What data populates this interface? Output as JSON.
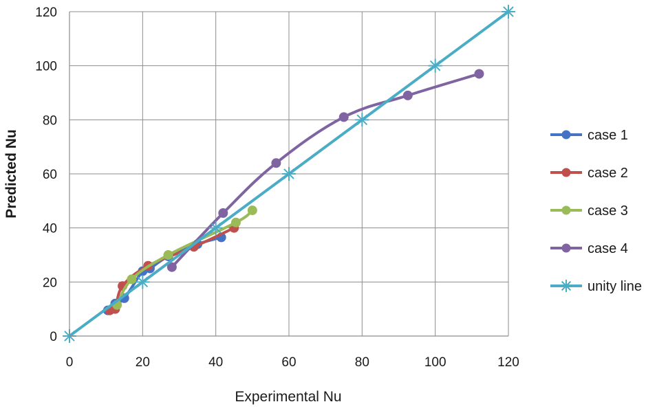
{
  "chart_data": {
    "type": "scatter",
    "title": "",
    "xlabel": "Experimental Nu",
    "ylabel": "Predicted Nu",
    "xlim": [
      0,
      120
    ],
    "ylim": [
      0,
      120
    ],
    "xticks": [
      0,
      20,
      40,
      60,
      80,
      100,
      120
    ],
    "yticks": [
      0,
      20,
      40,
      60,
      80,
      100,
      120
    ],
    "grid": true,
    "legend_position": "right",
    "series": [
      {
        "name": "case 1",
        "color": "#4472C4",
        "marker": "circle",
        "smooth": true,
        "x": [
          10.5,
          12.5,
          15,
          20,
          22,
          27,
          35,
          41.5
        ],
        "y": [
          9.5,
          12,
          14,
          24,
          25,
          29.5,
          34,
          36.5
        ]
      },
      {
        "name": "case 2",
        "color": "#C0504D",
        "marker": "circle",
        "smooth": true,
        "x": [
          11,
          12.5,
          14.5,
          21.5,
          34,
          45
        ],
        "y": [
          9.5,
          10,
          18.5,
          26,
          33,
          40
        ]
      },
      {
        "name": "case 3",
        "color": "#9BBB59",
        "marker": "circle",
        "smooth": true,
        "x": [
          13,
          17,
          27,
          45.5,
          50
        ],
        "y": [
          11.5,
          21,
          30,
          42,
          46.5
        ]
      },
      {
        "name": "case 4",
        "color": "#8064A2",
        "marker": "circle",
        "smooth": true,
        "x": [
          28,
          42,
          56.5,
          75,
          92.5,
          112
        ],
        "y": [
          25.5,
          45.5,
          64,
          81,
          89,
          97
        ]
      },
      {
        "name": "unity line",
        "color": "#4BACC6",
        "marker": "asterisk",
        "smooth": false,
        "x": [
          0,
          20,
          40,
          60,
          80,
          100,
          120
        ],
        "y": [
          0,
          20,
          40,
          60,
          80,
          100,
          120
        ]
      }
    ]
  }
}
